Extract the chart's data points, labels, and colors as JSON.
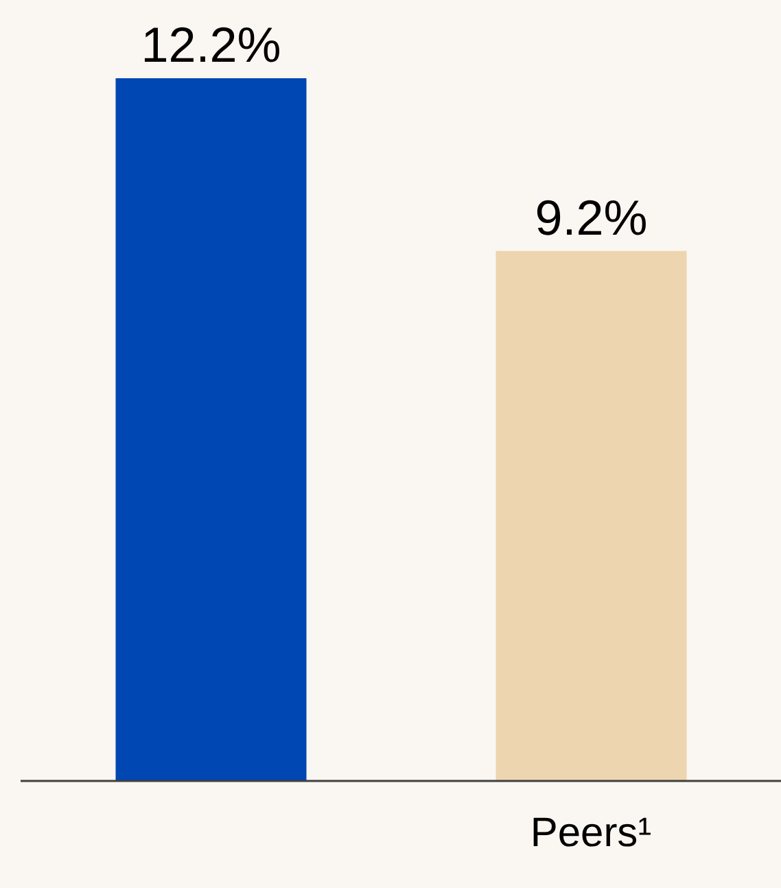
{
  "chart_data": {
    "type": "bar",
    "categories": [
      null,
      "Peers¹"
    ],
    "values": [
      12.2,
      9.2
    ],
    "colors": [
      "#0047b3",
      "#edd5b0"
    ],
    "value_labels": [
      "12.2%",
      "9.2%"
    ]
  }
}
